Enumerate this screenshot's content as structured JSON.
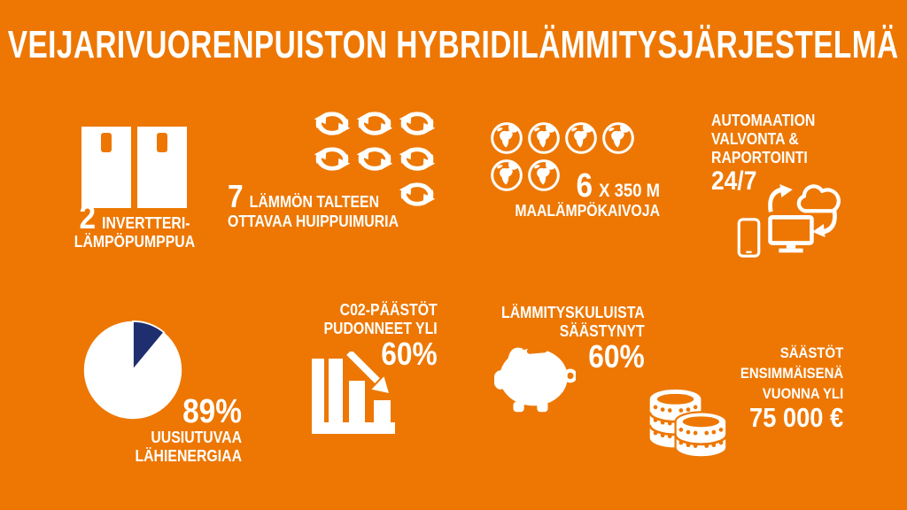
{
  "title": "VEIJARIVUORENPUISTON HYBRIDILÄMMITYSJÄRJESTELMÄ",
  "colors": {
    "background": "#ED7702",
    "text": "#FFFFFF",
    "pie_slice": "#1E2E6E"
  },
  "stats": {
    "heat_pumps": {
      "value": "2",
      "line1": "INVERTTERI-",
      "line2": "LÄMPÖPUMPPUA",
      "icon": "heat-pump-unit-icon",
      "icon_count": 2
    },
    "heat_recovery": {
      "value": "7",
      "line1": "LÄMMÖN TALTEEN",
      "line2": "OTTAVAA HUIPPUIMURIA",
      "icon": "recycle-cycle-icon",
      "icon_count": 7
    },
    "geo_wells": {
      "value": "6",
      "unit": "X 350 M",
      "label": "MAALÄMPÖKAIVOJA",
      "icon": "globe-icon",
      "icon_count": 6
    },
    "automation": {
      "line1": "AUTOMAATION",
      "line2": "VALVONTA &",
      "line3": "RAPORTOINTI",
      "value": "24/7",
      "icons": [
        "smartphone-icon",
        "monitor-icon",
        "cloud-icon",
        "sync-arrows-icon"
      ]
    },
    "renewable_energy": {
      "value": "89%",
      "line1": "UUSIUTUVAA",
      "line2": "LÄHIENERGIAA",
      "icon": "pie-chart"
    },
    "co2": {
      "line1": "C02-PÄÄSTÖT",
      "line2": "PUDONNEET YLI",
      "value": "60%",
      "icon": "declining-bar-chart-icon"
    },
    "heating_costs": {
      "line1": "LÄMMITYSKULUISTA",
      "line2": "SÄÄSTYNYT",
      "value": "60%",
      "icon": "piggy-bank-icon"
    },
    "first_year_savings": {
      "line1": "SÄÄSTÖT",
      "line2": "ENSIMMÄISENÄ",
      "line3": "VUONNA YLI",
      "value": "75 000 €",
      "icon": "coin-stacks-icon"
    }
  },
  "chart_data": {
    "type": "pie",
    "values": [
      89,
      11
    ],
    "labels": [
      "UUSIUTUVAA LÄHIENERGIAA",
      ""
    ],
    "colors": [
      "#FFFFFF",
      "#1E2E6E"
    ],
    "annotation": "89%",
    "legend_position": "none"
  }
}
